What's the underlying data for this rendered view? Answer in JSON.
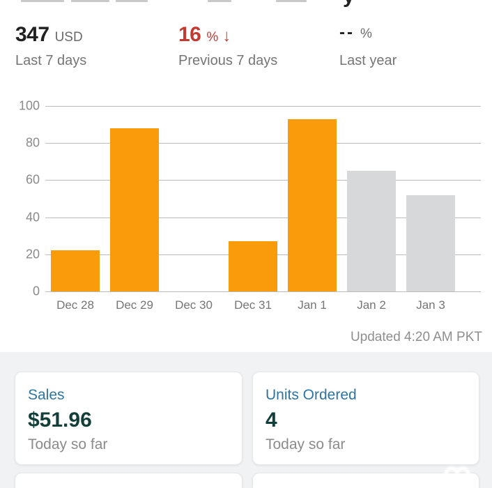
{
  "header": {
    "clipped_title_descender": "y"
  },
  "stats": [
    {
      "value": "347",
      "unit": "USD",
      "label": "Last 7 days"
    },
    {
      "value": "16",
      "unit": "%",
      "arrow": "↓",
      "label": "Previous 7 days"
    },
    {
      "value": "--",
      "unit": "%",
      "label": "Last year"
    }
  ],
  "chart_data": {
    "type": "bar",
    "categories": [
      "Dec 28",
      "Dec 29",
      "Dec 30",
      "Dec 31",
      "Jan 1",
      "Jan 2",
      "Jan 3"
    ],
    "values": [
      22,
      88,
      0,
      27,
      93,
      65,
      52
    ],
    "bar_colors": [
      "#F99C0C",
      "#F99C0C",
      "#F99C0C",
      "#F99C0C",
      "#F99C0C",
      "#D7D8DA",
      "#D7D8DA"
    ],
    "yticks": [
      0,
      20,
      40,
      60,
      80,
      100
    ],
    "ylim": [
      0,
      100
    ],
    "grid": true,
    "legend": "none",
    "title": "",
    "xlabel": "",
    "ylabel": "",
    "updated_text": "Updated 4:20 AM PKT"
  },
  "cards": [
    {
      "title": "Sales",
      "value": "$51.96",
      "subtitle": "Today so far"
    },
    {
      "title": "Units Ordered",
      "value": "4",
      "subtitle": "Today so far"
    }
  ],
  "colors": {
    "accent_orange": "#F99C0C",
    "comparison_gray": "#D7D8DA",
    "negative_red": "#C23A31",
    "card_title_blue": "#2E74A0",
    "card_value_teal": "#133F3B",
    "section_bg": "#F1F2F4"
  }
}
